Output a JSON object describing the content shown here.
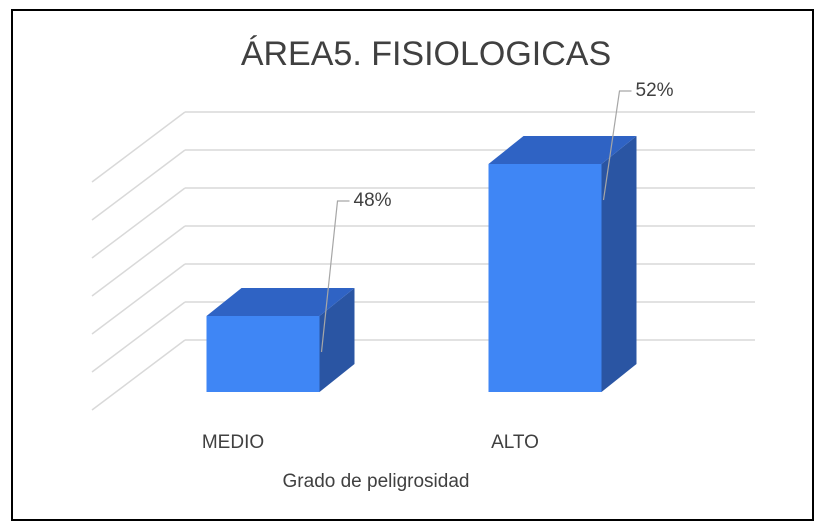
{
  "chart_data": {
    "type": "bar3d",
    "title": "ÁREA5. FISIOLOGICAS",
    "x_label": "Grado de peligrosidad",
    "categories": [
      "MEDIO",
      "ALTO"
    ],
    "values": [
      48,
      52
    ],
    "value_labels": [
      "48%",
      "52%"
    ],
    "color": "#3f86f5",
    "ylim": [
      46,
      52
    ],
    "yticks": [
      46,
      47,
      48,
      49,
      50,
      51,
      52
    ],
    "grid": true
  }
}
